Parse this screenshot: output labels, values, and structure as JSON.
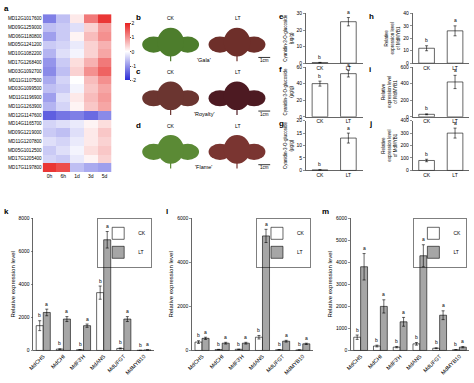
{
  "chart_data": [
    {
      "panel": "a",
      "type": "heatmap",
      "x": [
        "0h",
        "6h",
        "1d",
        "3d",
        "5d"
      ],
      "y": [
        "MD12G1017600",
        "MD09G1259000",
        "MD06G1180800",
        "MD05G1241200",
        "MD10G1082200",
        "MD17G1268400",
        "MD03G1092700",
        "MD11G1107500",
        "MD03G1099500",
        "MD11G1196900",
        "MD11G1263900",
        "MD12G1147600",
        "MD14G1165700",
        "MD09G1219000",
        "MD11G1207800",
        "MD05G1012500",
        "MD17G1205400",
        "MD17G1197800"
      ],
      "z": [
        [
          -1.2,
          -0.6,
          0.2,
          1.2,
          1.8
        ],
        [
          -0.6,
          -0.5,
          -0.3,
          0.4,
          0.9
        ],
        [
          -0.9,
          -0.5,
          0.1,
          0.6,
          1.0
        ],
        [
          -0.5,
          -0.4,
          -0.2,
          0.4,
          0.7
        ],
        [
          -0.7,
          -0.3,
          -0.1,
          0.4,
          0.8
        ],
        [
          -1.0,
          -0.5,
          0.3,
          0.7,
          1.2
        ],
        [
          -1.1,
          -0.6,
          0.4,
          1.0,
          1.4
        ],
        [
          -0.8,
          -0.4,
          0.0,
          0.6,
          1.0
        ],
        [
          -0.6,
          -0.5,
          -0.1,
          0.5,
          0.8
        ],
        [
          -0.9,
          -0.3,
          0.2,
          0.6,
          0.9
        ],
        [
          -0.7,
          -0.4,
          0.1,
          0.5,
          0.8
        ],
        [
          -1.5,
          -1.3,
          -1.2,
          -1.4,
          -1.1
        ],
        [
          -0.4,
          -0.3,
          -0.2,
          0.1,
          0.3
        ],
        [
          -0.5,
          -0.6,
          -0.3,
          0.2,
          0.5
        ],
        [
          -0.3,
          -0.4,
          -0.2,
          0.2,
          0.4
        ],
        [
          -0.5,
          -0.3,
          -0.1,
          0.3,
          0.5
        ],
        [
          -0.4,
          -0.5,
          -0.2,
          0.1,
          0.4
        ],
        [
          1.8,
          1.6,
          -0.6,
          -0.8,
          -0.9
        ]
      ],
      "zlim": [
        -2,
        2
      ],
      "zticks": [
        -2,
        -1,
        0,
        1,
        2
      ]
    },
    {
      "panel": "e",
      "type": "bar",
      "categories": [
        "CK",
        "LT"
      ],
      "values": [
        0.3,
        25
      ],
      "errors": [
        0.2,
        2.5
      ],
      "letters": [
        "b",
        "a"
      ],
      "color": "#ffffff",
      "ylabel": "Cyanidin-3-O-glucoside (μg/g)",
      "ylim": [
        0,
        30
      ],
      "yticks": [
        0,
        10,
        20,
        30
      ]
    },
    {
      "panel": "f",
      "type": "bar",
      "categories": [
        "CK",
        "LT"
      ],
      "values": [
        40,
        52
      ],
      "errors": [
        3,
        4
      ],
      "letters": [
        "b",
        "a"
      ],
      "color": "#ffffff",
      "ylabel": "Cyanidin-3-O-glucoside (μg/g)",
      "ylim": [
        0,
        60
      ],
      "yticks": [
        0,
        20,
        40,
        60
      ]
    },
    {
      "panel": "g",
      "type": "bar",
      "categories": [
        "CK",
        "LT"
      ],
      "values": [
        0.2,
        13
      ],
      "errors": [
        0.1,
        2
      ],
      "letters": [
        "b",
        "a"
      ],
      "color": "#ffffff",
      "ylabel": "Cyanidin-3-O-glucoside (μg/g)",
      "ylim": [
        0,
        20
      ],
      "yticks": [
        0,
        5,
        10,
        15,
        20
      ]
    },
    {
      "panel": "h",
      "type": "bar",
      "categories": [
        "CK",
        "LT"
      ],
      "values": [
        12,
        26
      ],
      "errors": [
        2,
        4
      ],
      "letters": [
        "b",
        "a"
      ],
      "color": "#ffffff",
      "ylabel": "Relative expression level of MdMYB1",
      "ylim": [
        0,
        40
      ],
      "yticks": [
        0,
        10,
        20,
        30,
        40
      ]
    },
    {
      "panel": "i",
      "type": "bar",
      "categories": [
        "CK",
        "LT"
      ],
      "values": [
        30,
        420
      ],
      "errors": [
        5,
        80
      ],
      "letters": [
        "b",
        "a"
      ],
      "color": "#ffffff",
      "ylabel": "Relative expression level of MdMYB1",
      "ylim": [
        0,
        600
      ],
      "yticks": [
        0,
        200,
        400,
        600
      ]
    },
    {
      "panel": "j",
      "type": "bar",
      "categories": [
        "CK",
        "LT"
      ],
      "values": [
        80,
        300
      ],
      "errors": [
        10,
        40
      ],
      "letters": [
        "b",
        "a"
      ],
      "color": "#ffffff",
      "ylabel": "Relative expression level of MdMYB1",
      "ylim": [
        0,
        400
      ],
      "yticks": [
        0,
        100,
        200,
        300,
        400
      ]
    },
    {
      "panel": "k",
      "type": "bar",
      "categories": [
        "MdCHS",
        "MdCHI",
        "MdF3'H",
        "MdANS",
        "MdUFGT",
        "MdMYB10"
      ],
      "ylabel": "Relative expression level",
      "ylim": [
        0,
        8000
      ],
      "yticks": [
        0,
        2000,
        4000,
        6000,
        8000
      ],
      "legend": "upper right",
      "series": [
        {
          "name": "CK",
          "color": "#ffffff",
          "values": [
            1500,
            80,
            40,
            3500,
            120,
            5
          ],
          "errors": [
            300,
            20,
            10,
            400,
            30,
            2
          ],
          "letters": [
            "b",
            "b",
            "b",
            "b",
            "b",
            "b"
          ]
        },
        {
          "name": "LT",
          "color": "#a6a6a6",
          "values": [
            2300,
            1900,
            1500,
            6700,
            1900,
            30
          ],
          "errors": [
            200,
            150,
            100,
            500,
            150,
            8
          ],
          "letters": [
            "a",
            "a",
            "a",
            "a",
            "a",
            "a"
          ]
        }
      ]
    },
    {
      "panel": "l",
      "type": "bar",
      "categories": [
        "MdCHS",
        "MdCHI",
        "MdF3'H",
        "MdANS",
        "MdUFGT",
        "MdMYB10"
      ],
      "ylabel": "Relative expression level",
      "ylim": [
        0,
        6000
      ],
      "yticks": [
        0,
        2000,
        4000,
        6000
      ],
      "legend": "upper right",
      "series": [
        {
          "name": "CK",
          "color": "#ffffff",
          "values": [
            380,
            40,
            50,
            600,
            30,
            20
          ],
          "errors": [
            60,
            10,
            10,
            80,
            8,
            5
          ],
          "letters": [
            "b",
            "b",
            "b",
            "b",
            "b",
            "b"
          ]
        },
        {
          "name": "LT",
          "color": "#a6a6a6",
          "values": [
            550,
            330,
            330,
            5200,
            420,
            300
          ],
          "errors": [
            50,
            40,
            40,
            300,
            40,
            30
          ],
          "letters": [
            "a",
            "a",
            "a",
            "a",
            "a",
            "a"
          ]
        }
      ]
    },
    {
      "panel": "m",
      "type": "bar",
      "categories": [
        "MdCHS",
        "MdCHI",
        "MdF3'H",
        "MdANS",
        "MdUFGT",
        "MdMYB10"
      ],
      "ylabel": "Relative expression level",
      "ylim": [
        0,
        6000
      ],
      "yticks": [
        0,
        1000,
        2000,
        3000,
        4000,
        5000,
        6000
      ],
      "legend": "upper right",
      "series": [
        {
          "name": "CK",
          "color": "#ffffff",
          "values": [
            600,
            200,
            150,
            300,
            100,
            30
          ],
          "errors": [
            100,
            40,
            30,
            60,
            20,
            8
          ],
          "letters": [
            "b",
            "b",
            "b",
            "b",
            "b",
            "b"
          ]
        },
        {
          "name": "LT",
          "color": "#a6a6a6",
          "values": [
            3800,
            2000,
            1300,
            4300,
            1600,
            150
          ],
          "errors": [
            600,
            300,
            200,
            500,
            200,
            30
          ],
          "letters": [
            "a",
            "a",
            "a",
            "a",
            "a",
            "a"
          ]
        }
      ]
    }
  ],
  "photos": [
    {
      "panel": "b",
      "name": "'Gala'",
      "left": "CK",
      "right": "LT",
      "scale": "1cm"
    },
    {
      "panel": "c",
      "name": "'Royalty'",
      "left": "CK",
      "right": "LT",
      "scale": "1cm"
    },
    {
      "panel": "d",
      "name": "'Flame'",
      "left": "CK",
      "right": "LT",
      "scale": "1cm"
    }
  ]
}
